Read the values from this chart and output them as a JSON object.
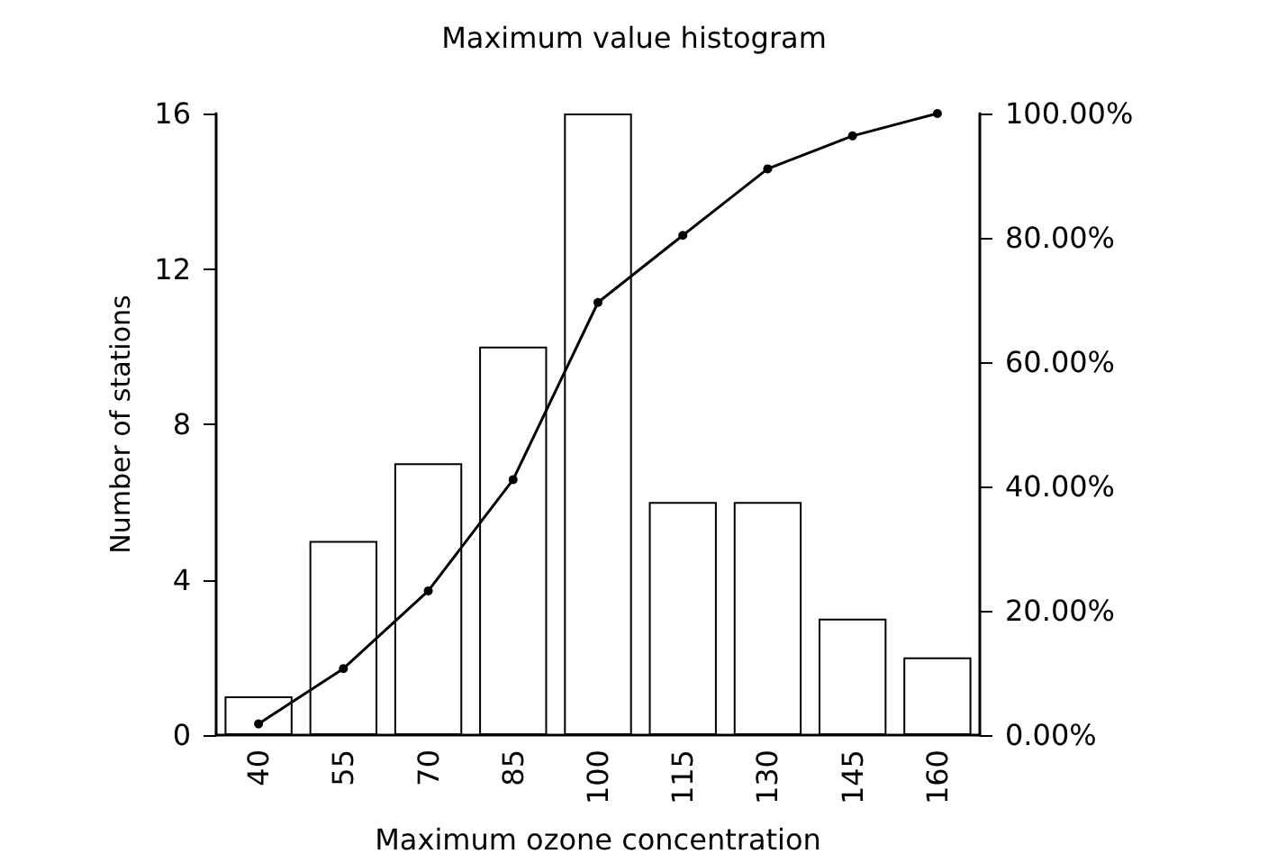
{
  "chart_data": {
    "type": "bar",
    "title": "Maximum value histogram",
    "xlabel": "Maximum ozone concentration",
    "ylabel": "Number of stations",
    "categories": [
      "40",
      "55",
      "70",
      "85",
      "100",
      "115",
      "130",
      "145",
      "160"
    ],
    "series": [
      {
        "color": "#ffffff",
        "values": [
          1,
          5,
          7,
          10,
          16,
          6,
          6,
          3,
          2
        ]
      },
      {
        "type": "line",
        "axis": "y2",
        "color": "#000000",
        "marker": "circle",
        "values": [
          1.8,
          10.7,
          23.2,
          41.1,
          69.6,
          80.4,
          91.1,
          96.4,
          100
        ]
      }
    ],
    "ylim": [
      0,
      16
    ],
    "yticks": [
      0,
      4,
      8,
      12,
      16
    ],
    "y2lim": [
      0,
      100
    ],
    "y2ticks": [
      {
        "value": 0,
        "label": "0.00%"
      },
      {
        "value": 20,
        "label": "20.00%"
      },
      {
        "value": 40,
        "label": "40.00%"
      },
      {
        "value": 60,
        "label": "60.00%"
      },
      {
        "value": 80,
        "label": "80.00%"
      },
      {
        "value": 100,
        "label": "100.00%"
      }
    ],
    "grid": false
  }
}
